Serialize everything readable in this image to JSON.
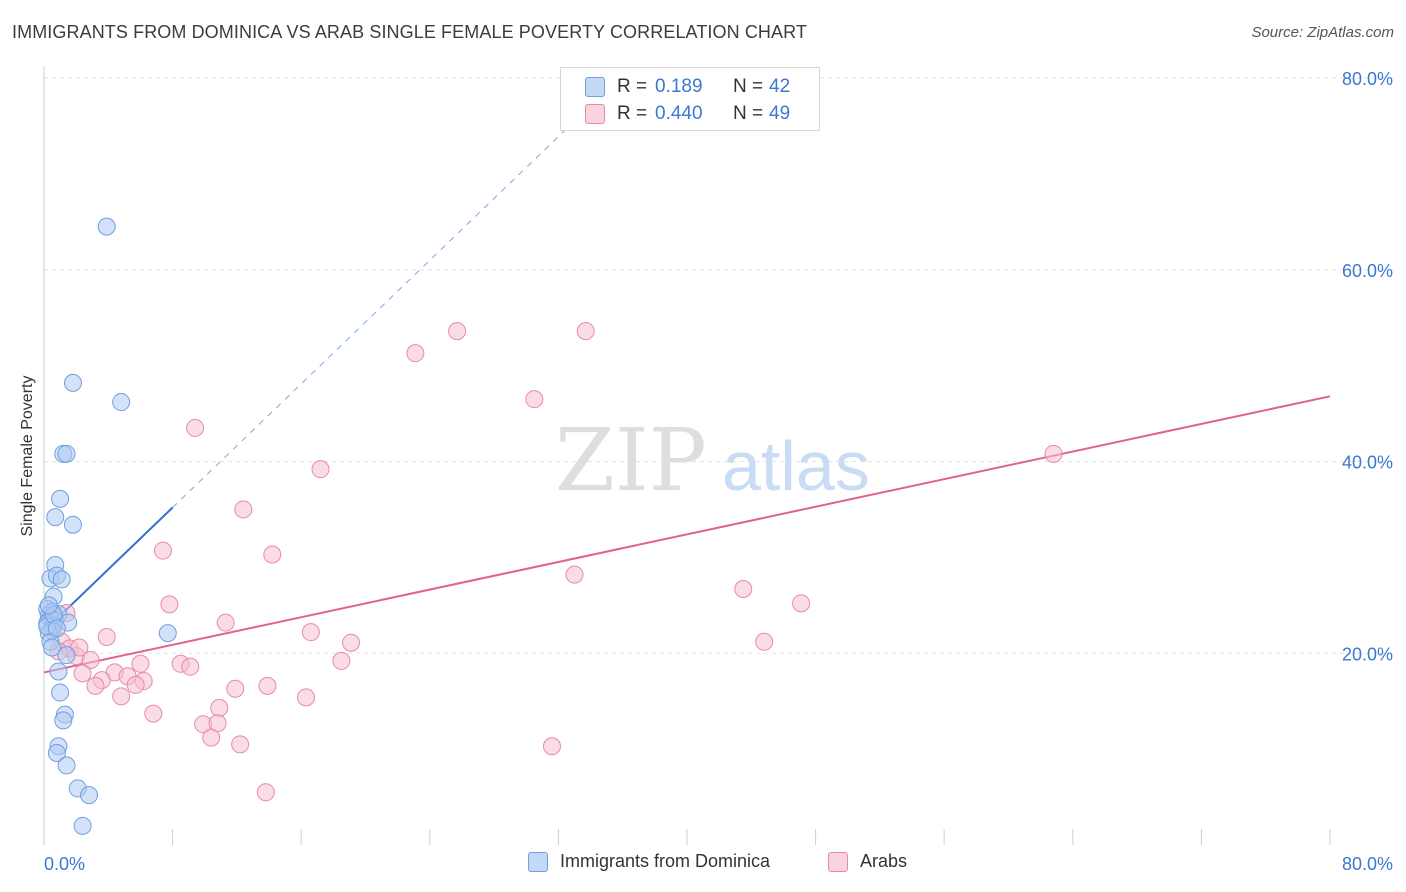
{
  "header": {
    "title": "IMMIGRANTS FROM DOMINICA VS ARAB SINGLE FEMALE POVERTY CORRELATION CHART",
    "source": "Source: ZipAtlas.com"
  },
  "watermark": {
    "zip": "ZIP",
    "atlas": "atlas"
  },
  "legend_top": {
    "rows": [
      {
        "r_label": "R =",
        "r_value": "0.189",
        "n_label": "N =",
        "n_value": "42"
      },
      {
        "r_label": "R =",
        "r_value": "0.440",
        "n_label": "N =",
        "n_value": "49"
      }
    ]
  },
  "legend_bottom": {
    "items": [
      "Immigrants from Dominica",
      "Arabs"
    ]
  },
  "colors": {
    "blue_fill": "#aecbf3",
    "blue_stroke": "#6f9fe0",
    "blue_line": "#2f6fce",
    "pink_fill": "#f6bfd0",
    "pink_stroke": "#e98aab",
    "pink_line": "#e0628f",
    "value_text": "#3b78d0",
    "grid": "#e3e3e3"
  },
  "chart_data": {
    "type": "scatter",
    "title": "IMMIGRANTS FROM DOMINICA VS ARAB SINGLE FEMALE POVERTY CORRELATION CHART",
    "xlabel": "",
    "ylabel": "Single Female Poverty",
    "xlim": [
      0,
      80
    ],
    "ylim": [
      0,
      80
    ],
    "x_tick_labels": [
      "0.0%",
      "80.0%"
    ],
    "y_tick_labels": [
      "20.0%",
      "40.0%",
      "60.0%",
      "80.0%"
    ],
    "y_ticks": [
      20,
      40,
      60,
      80
    ],
    "grid": true,
    "series": [
      {
        "name": "Immigrants from Dominica",
        "r": 0.189,
        "n": 42,
        "trend": {
          "x": [
            0,
            8.0
          ],
          "y": [
            22.3,
            35.2
          ],
          "dashed_to": [
            33.0,
            75.5
          ]
        },
        "points": [
          [
            3.9,
            64.5
          ],
          [
            1.8,
            48.2
          ],
          [
            4.8,
            46.2
          ],
          [
            1.2,
            40.8
          ],
          [
            1.4,
            40.8
          ],
          [
            1.0,
            36.1
          ],
          [
            0.7,
            34.2
          ],
          [
            1.8,
            33.4
          ],
          [
            0.7,
            29.2
          ],
          [
            0.4,
            27.8
          ],
          [
            0.8,
            28.1
          ],
          [
            1.1,
            27.7
          ],
          [
            0.6,
            25.9
          ],
          [
            0.2,
            24.6
          ],
          [
            0.5,
            24.3
          ],
          [
            0.9,
            24.1
          ],
          [
            0.3,
            23.9
          ],
          [
            0.4,
            23.6
          ],
          [
            0.7,
            23.4
          ],
          [
            1.5,
            23.2
          ],
          [
            0.2,
            23.1
          ],
          [
            0.6,
            22.9
          ],
          [
            0.5,
            22.4
          ],
          [
            0.3,
            22.1
          ],
          [
            7.7,
            22.1
          ],
          [
            0.4,
            21.2
          ],
          [
            0.5,
            20.6
          ],
          [
            1.4,
            19.8
          ],
          [
            0.9,
            18.1
          ],
          [
            1.0,
            15.9
          ],
          [
            1.3,
            13.6
          ],
          [
            1.2,
            13.0
          ],
          [
            0.9,
            10.3
          ],
          [
            0.8,
            9.6
          ],
          [
            1.4,
            8.3
          ],
          [
            2.1,
            5.9
          ],
          [
            2.8,
            5.2
          ],
          [
            2.4,
            2.0
          ],
          [
            0.2,
            22.8
          ],
          [
            0.6,
            24.0
          ],
          [
            0.3,
            25.0
          ],
          [
            0.8,
            22.6
          ]
        ]
      },
      {
        "name": "Arabs",
        "r": 0.44,
        "n": 49,
        "trend": {
          "x": [
            0,
            80
          ],
          "y": [
            18.0,
            46.8
          ]
        },
        "points": [
          [
            25.7,
            53.6
          ],
          [
            33.7,
            53.6
          ],
          [
            23.1,
            51.3
          ],
          [
            30.5,
            46.5
          ],
          [
            9.4,
            43.5
          ],
          [
            62.8,
            40.8
          ],
          [
            17.2,
            39.2
          ],
          [
            12.4,
            35.0
          ],
          [
            7.4,
            30.7
          ],
          [
            14.2,
            30.3
          ],
          [
            33.0,
            28.2
          ],
          [
            43.5,
            26.7
          ],
          [
            47.1,
            25.2
          ],
          [
            7.8,
            25.1
          ],
          [
            11.3,
            23.2
          ],
          [
            16.6,
            22.2
          ],
          [
            3.9,
            21.7
          ],
          [
            19.1,
            21.1
          ],
          [
            44.8,
            21.2
          ],
          [
            1.1,
            21.2
          ],
          [
            1.6,
            20.5
          ],
          [
            0.9,
            20.2
          ],
          [
            2.0,
            19.7
          ],
          [
            2.9,
            19.3
          ],
          [
            8.5,
            18.9
          ],
          [
            9.1,
            18.6
          ],
          [
            18.5,
            19.2
          ],
          [
            6.0,
            18.9
          ],
          [
            2.4,
            17.9
          ],
          [
            4.4,
            18.0
          ],
          [
            5.2,
            17.6
          ],
          [
            3.6,
            17.2
          ],
          [
            6.2,
            17.1
          ],
          [
            5.7,
            16.7
          ],
          [
            3.2,
            16.6
          ],
          [
            11.9,
            16.3
          ],
          [
            13.9,
            16.6
          ],
          [
            4.8,
            15.5
          ],
          [
            16.3,
            15.4
          ],
          [
            10.9,
            14.3
          ],
          [
            6.8,
            13.7
          ],
          [
            9.9,
            12.6
          ],
          [
            10.8,
            12.7
          ],
          [
            10.4,
            11.2
          ],
          [
            12.2,
            10.5
          ],
          [
            31.6,
            10.3
          ],
          [
            13.8,
            5.5
          ],
          [
            1.4,
            24.2
          ],
          [
            2.2,
            20.6
          ]
        ]
      }
    ]
  }
}
